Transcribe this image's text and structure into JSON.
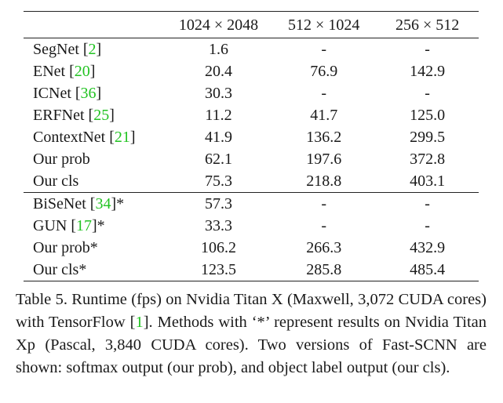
{
  "table": {
    "columns": [
      "1024 × 2048",
      "512 × 1024",
      "256 × 512"
    ],
    "group_a": [
      {
        "name": "SegNet [",
        "ref": "2",
        "suffix": "]",
        "values": [
          "1.6",
          "-",
          "-"
        ]
      },
      {
        "name": "ENet [",
        "ref": "20",
        "suffix": "]",
        "values": [
          "20.4",
          "76.9",
          "142.9"
        ]
      },
      {
        "name": "ICNet [",
        "ref": "36",
        "suffix": "]",
        "values": [
          "30.3",
          "-",
          "-"
        ]
      },
      {
        "name": "ERFNet [",
        "ref": "25",
        "suffix": "]",
        "values": [
          "11.2",
          "41.7",
          "125.0"
        ]
      },
      {
        "name": "ContextNet [",
        "ref": "21",
        "suffix": "]",
        "values": [
          "41.9",
          "136.2",
          "299.5"
        ]
      },
      {
        "name": "Our prob",
        "ref": "",
        "suffix": "",
        "values": [
          "62.1",
          "197.6",
          "372.8"
        ]
      },
      {
        "name": "Our cls",
        "ref": "",
        "suffix": "",
        "values": [
          "75.3",
          "218.8",
          "403.1"
        ]
      }
    ],
    "group_b": [
      {
        "name": "BiSeNet [",
        "ref": "34",
        "suffix": "]*",
        "values": [
          "57.3",
          "-",
          "-"
        ]
      },
      {
        "name": "GUN [",
        "ref": "17",
        "suffix": "]*",
        "values": [
          "33.3",
          "-",
          "-"
        ]
      },
      {
        "name": "Our prob*",
        "ref": "",
        "suffix": "",
        "values": [
          "106.2",
          "266.3",
          "432.9"
        ]
      },
      {
        "name": "Our cls*",
        "ref": "",
        "suffix": "",
        "values": [
          "123.5",
          "285.8",
          "485.4"
        ]
      }
    ]
  },
  "caption": {
    "before_ref": "Table 5. Runtime (fps) on Nvidia Titan X (Maxwell, 3,072 CUDA cores) with TensorFlow [",
    "ref": "1",
    "after_ref": "]. Methods with ‘*’ represent results on Nvidia Titan Xp (Pascal, 3,840 CUDA cores). Two versions of Fast-SCNN are shown: softmax output (our prob), and object label output (our cls)."
  }
}
